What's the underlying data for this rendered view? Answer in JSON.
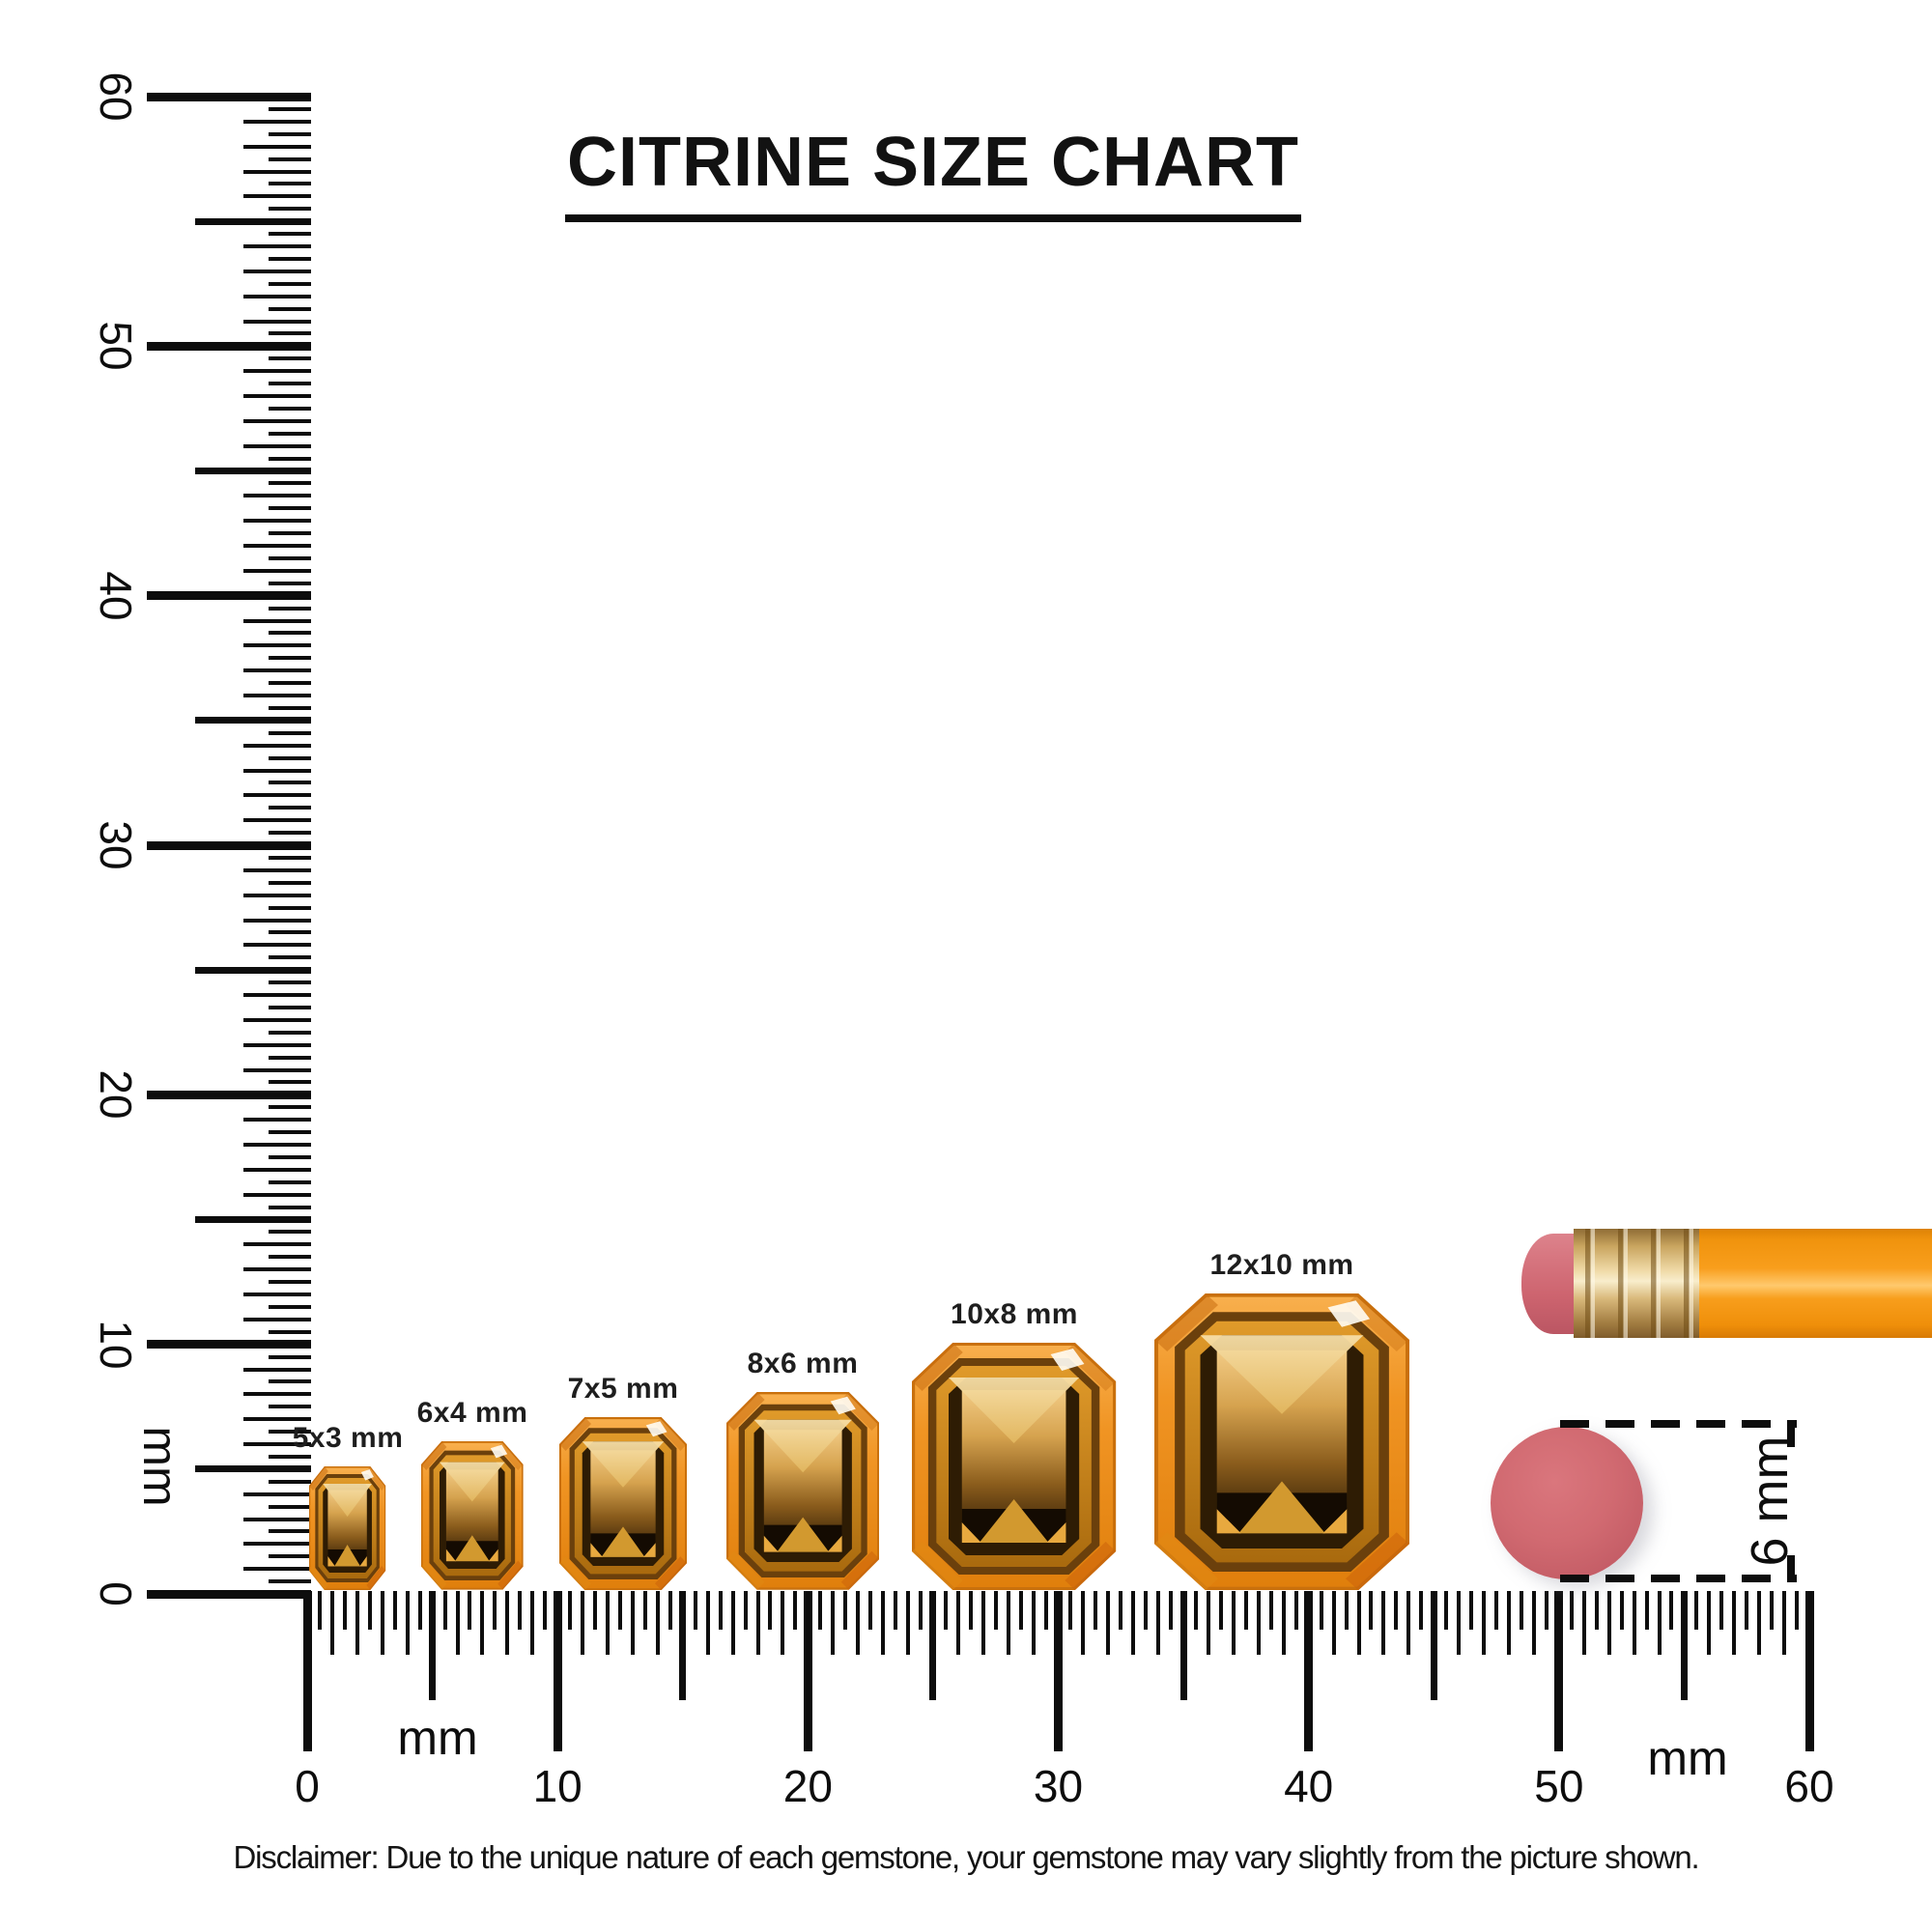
{
  "title": "CITRINE SIZE CHART",
  "rulers": {
    "vertical": {
      "unit": "mm",
      "range_mm": 60,
      "tick_step_mm": 0.5,
      "major_labels": [
        "0",
        "10",
        "20",
        "30",
        "40",
        "50",
        "60"
      ]
    },
    "horizontal": {
      "unit_left": "mm",
      "unit_right": "mm",
      "range_mm": 60,
      "tick_step_mm": 0.5,
      "major_labels": [
        "0",
        "10",
        "20",
        "30",
        "40",
        "50",
        "60"
      ]
    }
  },
  "gems": [
    {
      "label": "5x3 mm",
      "length_mm": 5,
      "width_mm": 3
    },
    {
      "label": "6x4 mm",
      "length_mm": 6,
      "width_mm": 4
    },
    {
      "label": "7x5 mm",
      "length_mm": 7,
      "width_mm": 5
    },
    {
      "label": "8x6 mm",
      "length_mm": 8,
      "width_mm": 6
    },
    {
      "label": "10x8 mm",
      "length_mm": 10,
      "width_mm": 8
    },
    {
      "label": "12x10 mm",
      "length_mm": 12,
      "width_mm": 10
    }
  ],
  "measure_annotation": {
    "label": "6 mm"
  },
  "disclaimer": "Disclaimer: Due to the unique nature of each gemstone, your gemstone may vary slightly from the picture shown.",
  "colors": {
    "ink": "#0d0d0d",
    "gem_orange": "#f09423",
    "gem_dark": "#2e1c04",
    "gem_light": "#f2cb85",
    "eraser_pink": "#d16a71",
    "pencil_body_orange": "#f89e1c",
    "ferrule_gold": "#d9b97b"
  }
}
